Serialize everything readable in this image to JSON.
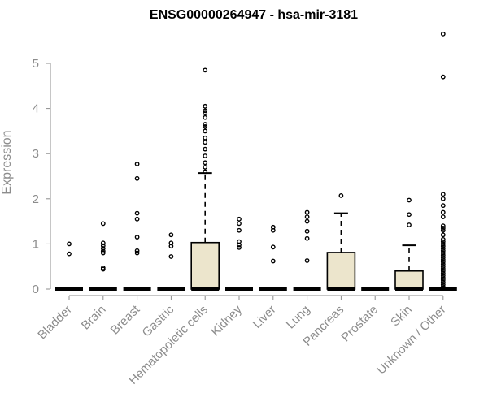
{
  "chart_data": {
    "type": "boxplot",
    "title": "ENSG00000264947 - hsa-mir-3181",
    "ylabel": "Expression",
    "xlabel": "",
    "ylim": [
      0,
      5.7
    ],
    "yticks": [
      0,
      1,
      2,
      3,
      4,
      5
    ],
    "box_fill_color": "#ece5cc",
    "categories": [
      "Bladder",
      "Brain",
      "Breast",
      "Gastric",
      "Hematopoietic cells",
      "Kidney",
      "Liver",
      "Lung",
      "Pancreas",
      "Prostate",
      "Skin",
      "Unknown / Other"
    ],
    "boxes": [
      {
        "q1": 0,
        "median": 0,
        "q3": 0,
        "whisker_low": 0,
        "whisker_high": 0,
        "outliers": [
          0.78,
          1.0
        ]
      },
      {
        "q1": 0,
        "median": 0,
        "q3": 0,
        "whisker_low": 0,
        "whisker_high": 0,
        "outliers": [
          0.44,
          0.47,
          0.8,
          0.84,
          0.9,
          0.96,
          1.02,
          1.45
        ]
      },
      {
        "q1": 0,
        "median": 0,
        "q3": 0,
        "whisker_low": 0,
        "whisker_high": 0,
        "outliers": [
          0.8,
          0.85,
          1.15,
          1.55,
          1.68,
          2.45,
          2.77
        ]
      },
      {
        "q1": 0,
        "median": 0,
        "q3": 0,
        "whisker_low": 0,
        "whisker_high": 0,
        "outliers": [
          0.72,
          0.95,
          1.02,
          1.2
        ]
      },
      {
        "q1": 0,
        "median": 0,
        "q3": 1.03,
        "whisker_low": 0,
        "whisker_high": 2.57,
        "outliers": [
          2.6,
          2.7,
          2.8,
          2.95,
          3.1,
          3.25,
          3.35,
          3.5,
          3.6,
          3.65,
          3.8,
          3.9,
          3.95,
          4.05,
          4.85
        ]
      },
      {
        "q1": 0,
        "median": 0,
        "q3": 0,
        "whisker_low": 0,
        "whisker_high": 0,
        "outliers": [
          0.92,
          0.98,
          1.05,
          1.3,
          1.45,
          1.55
        ]
      },
      {
        "q1": 0,
        "median": 0,
        "q3": 0,
        "whisker_low": 0,
        "whisker_high": 0,
        "outliers": [
          0.62,
          0.93,
          1.3,
          1.37
        ]
      },
      {
        "q1": 0,
        "median": 0,
        "q3": 0,
        "whisker_low": 0,
        "whisker_high": 0,
        "outliers": [
          0.63,
          1.12,
          1.28,
          1.5,
          1.6,
          1.7
        ]
      },
      {
        "q1": 0,
        "median": 0,
        "q3": 0.81,
        "whisker_low": 0,
        "whisker_high": 1.68,
        "outliers": [
          2.07
        ]
      },
      {
        "q1": 0,
        "median": 0,
        "q3": 0,
        "whisker_low": 0,
        "whisker_high": 0,
        "outliers": []
      },
      {
        "q1": 0,
        "median": 0,
        "q3": 0.4,
        "whisker_low": 0,
        "whisker_high": 0.97,
        "outliers": [
          1.42,
          1.65,
          1.97
        ]
      },
      {
        "q1": 0,
        "median": 0,
        "q3": 0,
        "whisker_low": 0,
        "whisker_high": 0,
        "outliers": [
          0.05,
          0.1,
          0.15,
          0.2,
          0.25,
          0.3,
          0.35,
          0.4,
          0.45,
          0.5,
          0.55,
          0.6,
          0.65,
          0.7,
          0.75,
          0.8,
          0.85,
          0.9,
          0.95,
          1.0,
          1.05,
          1.1,
          1.2,
          1.3,
          1.35,
          1.4,
          1.6,
          1.7,
          1.85,
          2.0,
          2.1,
          4.7,
          5.65
        ]
      }
    ]
  }
}
